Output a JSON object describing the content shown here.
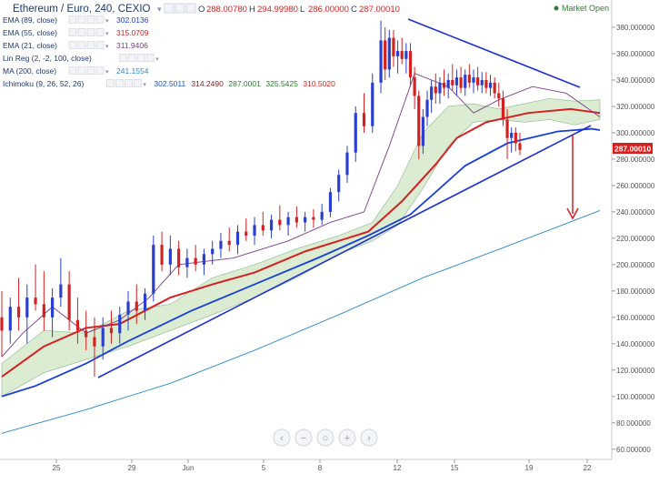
{
  "header": {
    "title": "Ethereum / Euro, 240, CEXIO",
    "ohlc": [
      {
        "k": "O",
        "v": "288.00780"
      },
      {
        "k": "H",
        "v": "294.99980"
      },
      {
        "k": "L",
        "v": "286.00000"
      },
      {
        "k": "C",
        "v": "287.00010"
      }
    ],
    "market_status": "Market Open"
  },
  "indicators": [
    {
      "label": "EMA (89, close)",
      "values": [
        "302.0136"
      ],
      "color": "#1a3fd6"
    },
    {
      "label": "EMA (55, close)",
      "values": [
        "315.0709"
      ],
      "color": "#d42020"
    },
    {
      "label": "EMA (21, close)",
      "values": [
        "311.9406"
      ],
      "color": "#7a3c8c"
    },
    {
      "label": "Lin Reg (2, -2, 100, close)",
      "values": [],
      "color": "#9aa8c8"
    },
    {
      "label": "MA (200, close)",
      "values": [
        "241.1554"
      ],
      "color": "#2a8ac8"
    },
    {
      "label": "Ichimoku (9, 26, 52, 26)",
      "values": [
        "302.5011",
        "314.2490",
        "287.0001",
        "325.5425",
        "310.5020"
      ],
      "value_colors": [
        "#1a56c8",
        "#8a1c1c",
        "#2a7a2a",
        "#2a7a2a",
        "#d42020"
      ]
    }
  ],
  "current_price_tag": "287.00010",
  "zoom_controls": [
    "‹",
    "−",
    "○",
    "+",
    "›"
  ],
  "colors": {
    "candle_up": "#2a3fd0",
    "candle_down": "#d42020",
    "ema89": "#1a3fd6",
    "ema55": "#d42020",
    "ema21": "#7a3c8c",
    "ma200": "#2a8ac8",
    "cloud": "#cfe5c4",
    "trendline": "#1a2fd0",
    "arrow": "#d42020"
  },
  "chart_data": {
    "type": "candlestick",
    "x_tick_labels": [
      "25",
      "29",
      "Jun",
      "5",
      "8",
      "12",
      "15",
      "19",
      "22"
    ],
    "y_ticks": [
      "380.000000",
      "360.000000",
      "340.000000",
      "320.000000",
      "300.000000",
      "280.000000",
      "260.000000",
      "240.000000",
      "220.000000",
      "200.000000",
      "180.000000",
      "160.000000",
      "140.000000",
      "120.000000",
      "100.000000",
      "80.000000",
      "60.000000"
    ],
    "ylim": [
      55,
      400
    ],
    "series": [
      {
        "name": "EMA (89, close)",
        "values": [
          {
            "x": 0,
            "y": 100
          },
          {
            "x": 8,
            "y": 108
          },
          {
            "x": 20,
            "y": 125
          },
          {
            "x": 30,
            "y": 142
          },
          {
            "x": 45,
            "y": 165
          },
          {
            "x": 60,
            "y": 185
          },
          {
            "x": 75,
            "y": 205
          },
          {
            "x": 87,
            "y": 222
          },
          {
            "x": 97,
            "y": 238
          },
          {
            "x": 103,
            "y": 255
          },
          {
            "x": 110,
            "y": 275
          },
          {
            "x": 120,
            "y": 292
          },
          {
            "x": 132,
            "y": 301
          },
          {
            "x": 140,
            "y": 303
          },
          {
            "x": 142,
            "y": 302
          }
        ]
      },
      {
        "name": "EMA (55, close)",
        "values": [
          {
            "x": 0,
            "y": 115
          },
          {
            "x": 10,
            "y": 138
          },
          {
            "x": 20,
            "y": 152
          },
          {
            "x": 28,
            "y": 155
          },
          {
            "x": 40,
            "y": 175
          },
          {
            "x": 50,
            "y": 185
          },
          {
            "x": 60,
            "y": 194
          },
          {
            "x": 72,
            "y": 210
          },
          {
            "x": 87,
            "y": 225
          },
          {
            "x": 95,
            "y": 248
          },
          {
            "x": 103,
            "y": 276
          },
          {
            "x": 108,
            "y": 296
          },
          {
            "x": 115,
            "y": 308
          },
          {
            "x": 125,
            "y": 315
          },
          {
            "x": 135,
            "y": 318
          },
          {
            "x": 142,
            "y": 315
          }
        ]
      },
      {
        "name": "EMA (21, close)",
        "values": [
          {
            "x": 0,
            "y": 130
          },
          {
            "x": 5,
            "y": 148
          },
          {
            "x": 12,
            "y": 168
          },
          {
            "x": 20,
            "y": 148
          },
          {
            "x": 28,
            "y": 158
          },
          {
            "x": 35,
            "y": 175
          },
          {
            "x": 42,
            "y": 200
          },
          {
            "x": 55,
            "y": 205
          },
          {
            "x": 68,
            "y": 218
          },
          {
            "x": 78,
            "y": 232
          },
          {
            "x": 86,
            "y": 240
          },
          {
            "x": 92,
            "y": 290
          },
          {
            "x": 98,
            "y": 345
          },
          {
            "x": 106,
            "y": 335
          },
          {
            "x": 112,
            "y": 315
          },
          {
            "x": 118,
            "y": 325
          },
          {
            "x": 126,
            "y": 335
          },
          {
            "x": 134,
            "y": 330
          },
          {
            "x": 142,
            "y": 312
          }
        ]
      },
      {
        "name": "MA (200, close)",
        "values": [
          {
            "x": 0,
            "y": 72
          },
          {
            "x": 20,
            "y": 90
          },
          {
            "x": 40,
            "y": 110
          },
          {
            "x": 60,
            "y": 135
          },
          {
            "x": 80,
            "y": 162
          },
          {
            "x": 100,
            "y": 190
          },
          {
            "x": 120,
            "y": 214
          },
          {
            "x": 142,
            "y": 241
          }
        ]
      }
    ],
    "candles": [
      {
        "x": 0,
        "o": 160,
        "h": 180,
        "l": 130,
        "c": 150
      },
      {
        "x": 2,
        "o": 150,
        "h": 175,
        "l": 140,
        "c": 168
      },
      {
        "x": 4,
        "o": 168,
        "h": 190,
        "l": 150,
        "c": 160
      },
      {
        "x": 6,
        "o": 160,
        "h": 185,
        "l": 140,
        "c": 175
      },
      {
        "x": 8,
        "o": 175,
        "h": 200,
        "l": 165,
        "c": 170
      },
      {
        "x": 10,
        "o": 170,
        "h": 195,
        "l": 150,
        "c": 160
      },
      {
        "x": 12,
        "o": 160,
        "h": 182,
        "l": 145,
        "c": 175
      },
      {
        "x": 14,
        "o": 175,
        "h": 205,
        "l": 168,
        "c": 185
      },
      {
        "x": 16,
        "o": 185,
        "h": 195,
        "l": 150,
        "c": 158
      },
      {
        "x": 18,
        "o": 158,
        "h": 175,
        "l": 140,
        "c": 150
      },
      {
        "x": 20,
        "o": 150,
        "h": 165,
        "l": 135,
        "c": 145
      },
      {
        "x": 22,
        "o": 145,
        "h": 160,
        "l": 115,
        "c": 138
      },
      {
        "x": 24,
        "o": 138,
        "h": 160,
        "l": 128,
        "c": 152
      },
      {
        "x": 26,
        "o": 152,
        "h": 165,
        "l": 140,
        "c": 148
      },
      {
        "x": 28,
        "o": 148,
        "h": 168,
        "l": 140,
        "c": 162
      },
      {
        "x": 30,
        "o": 162,
        "h": 180,
        "l": 150,
        "c": 172
      },
      {
        "x": 32,
        "o": 172,
        "h": 185,
        "l": 155,
        "c": 165
      },
      {
        "x": 34,
        "o": 165,
        "h": 182,
        "l": 158,
        "c": 178
      },
      {
        "x": 36,
        "o": 178,
        "h": 222,
        "l": 172,
        "c": 215
      },
      {
        "x": 38,
        "o": 215,
        "h": 225,
        "l": 195,
        "c": 200
      },
      {
        "x": 40,
        "o": 200,
        "h": 222,
        "l": 192,
        "c": 212
      },
      {
        "x": 42,
        "o": 212,
        "h": 218,
        "l": 192,
        "c": 198
      },
      {
        "x": 44,
        "o": 198,
        "h": 212,
        "l": 190,
        "c": 205
      },
      {
        "x": 46,
        "o": 205,
        "h": 215,
        "l": 195,
        "c": 200
      },
      {
        "x": 48,
        "o": 200,
        "h": 212,
        "l": 192,
        "c": 208
      },
      {
        "x": 50,
        "o": 208,
        "h": 218,
        "l": 200,
        "c": 212
      },
      {
        "x": 52,
        "o": 212,
        "h": 224,
        "l": 205,
        "c": 218
      },
      {
        "x": 54,
        "o": 218,
        "h": 228,
        "l": 210,
        "c": 215
      },
      {
        "x": 56,
        "o": 215,
        "h": 230,
        "l": 208,
        "c": 225
      },
      {
        "x": 58,
        "o": 225,
        "h": 235,
        "l": 218,
        "c": 222
      },
      {
        "x": 60,
        "o": 222,
        "h": 236,
        "l": 215,
        "c": 230
      },
      {
        "x": 62,
        "o": 230,
        "h": 240,
        "l": 222,
        "c": 226
      },
      {
        "x": 64,
        "o": 226,
        "h": 238,
        "l": 220,
        "c": 234
      },
      {
        "x": 66,
        "o": 234,
        "h": 245,
        "l": 226,
        "c": 230
      },
      {
        "x": 68,
        "o": 230,
        "h": 240,
        "l": 222,
        "c": 236
      },
      {
        "x": 70,
        "o": 236,
        "h": 244,
        "l": 228,
        "c": 232
      },
      {
        "x": 72,
        "o": 232,
        "h": 240,
        "l": 225,
        "c": 236
      },
      {
        "x": 74,
        "o": 236,
        "h": 242,
        "l": 228,
        "c": 234
      },
      {
        "x": 76,
        "o": 234,
        "h": 246,
        "l": 230,
        "c": 240
      },
      {
        "x": 78,
        "o": 240,
        "h": 258,
        "l": 236,
        "c": 255
      },
      {
        "x": 80,
        "o": 255,
        "h": 272,
        "l": 248,
        "c": 268
      },
      {
        "x": 82,
        "o": 268,
        "h": 290,
        "l": 262,
        "c": 285
      },
      {
        "x": 84,
        "o": 285,
        "h": 320,
        "l": 278,
        "c": 315
      },
      {
        "x": 86,
        "o": 315,
        "h": 330,
        "l": 300,
        "c": 305
      },
      {
        "x": 88,
        "o": 305,
        "h": 345,
        "l": 300,
        "c": 338
      },
      {
        "x": 90,
        "o": 338,
        "h": 385,
        "l": 330,
        "c": 370
      },
      {
        "x": 91,
        "o": 370,
        "h": 380,
        "l": 340,
        "c": 348
      },
      {
        "x": 92,
        "o": 348,
        "h": 378,
        "l": 342,
        "c": 372
      },
      {
        "x": 93,
        "o": 372,
        "h": 378,
        "l": 350,
        "c": 358
      },
      {
        "x": 94,
        "o": 358,
        "h": 370,
        "l": 345,
        "c": 362
      },
      {
        "x": 95,
        "o": 362,
        "h": 372,
        "l": 352,
        "c": 356
      },
      {
        "x": 96,
        "o": 356,
        "h": 368,
        "l": 345,
        "c": 362
      },
      {
        "x": 97,
        "o": 362,
        "h": 368,
        "l": 335,
        "c": 342
      },
      {
        "x": 98,
        "o": 342,
        "h": 350,
        "l": 318,
        "c": 328
      },
      {
        "x": 99,
        "o": 328,
        "h": 332,
        "l": 280,
        "c": 290
      },
      {
        "x": 100,
        "o": 290,
        "h": 318,
        "l": 284,
        "c": 312
      },
      {
        "x": 101,
        "o": 312,
        "h": 332,
        "l": 305,
        "c": 325
      },
      {
        "x": 102,
        "o": 325,
        "h": 340,
        "l": 315,
        "c": 335
      },
      {
        "x": 103,
        "o": 335,
        "h": 345,
        "l": 322,
        "c": 330
      },
      {
        "x": 104,
        "o": 330,
        "h": 342,
        "l": 322,
        "c": 338
      },
      {
        "x": 105,
        "o": 338,
        "h": 348,
        "l": 328,
        "c": 334
      },
      {
        "x": 106,
        "o": 334,
        "h": 345,
        "l": 326,
        "c": 340
      },
      {
        "x": 107,
        "o": 340,
        "h": 352,
        "l": 332,
        "c": 336
      },
      {
        "x": 108,
        "o": 336,
        "h": 348,
        "l": 328,
        "c": 342
      },
      {
        "x": 109,
        "o": 342,
        "h": 350,
        "l": 330,
        "c": 334
      },
      {
        "x": 110,
        "o": 334,
        "h": 348,
        "l": 328,
        "c": 344
      },
      {
        "x": 111,
        "o": 344,
        "h": 352,
        "l": 334,
        "c": 338
      },
      {
        "x": 112,
        "o": 338,
        "h": 348,
        "l": 330,
        "c": 342
      },
      {
        "x": 113,
        "o": 342,
        "h": 350,
        "l": 332,
        "c": 336
      },
      {
        "x": 114,
        "o": 336,
        "h": 346,
        "l": 330,
        "c": 340
      },
      {
        "x": 115,
        "o": 340,
        "h": 346,
        "l": 330,
        "c": 334
      },
      {
        "x": 116,
        "o": 334,
        "h": 344,
        "l": 328,
        "c": 338
      },
      {
        "x": 117,
        "o": 338,
        "h": 342,
        "l": 326,
        "c": 330
      },
      {
        "x": 118,
        "o": 330,
        "h": 338,
        "l": 320,
        "c": 326
      },
      {
        "x": 119,
        "o": 326,
        "h": 332,
        "l": 305,
        "c": 310
      },
      {
        "x": 120,
        "o": 310,
        "h": 318,
        "l": 280,
        "c": 296
      },
      {
        "x": 121,
        "o": 296,
        "h": 304,
        "l": 285,
        "c": 300
      },
      {
        "x": 122,
        "o": 300,
        "h": 304,
        "l": 286,
        "c": 292
      },
      {
        "x": 123,
        "o": 292,
        "h": 300,
        "l": 283,
        "c": 287
      }
    ],
    "x_range": [
      -2,
      145
    ]
  }
}
